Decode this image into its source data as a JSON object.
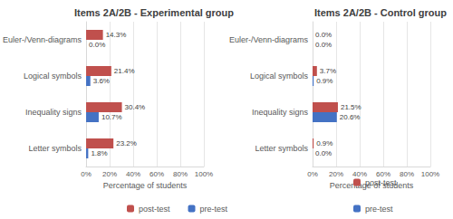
{
  "chart_data": [
    {
      "type": "bar",
      "title": "Items 2A/2B - Experimental group",
      "orientation": "horizontal",
      "categories": [
        "Euler-/Venn-diagrams",
        "Logical symbols",
        "Inequality signs",
        "Letter symbols"
      ],
      "series": [
        {
          "name": "post-test",
          "color": "#c0504d",
          "values": [
            14.3,
            21.4,
            30.4,
            23.2
          ],
          "value_labels": [
            "14.3%",
            "21.4%",
            "30.4%",
            "23.2%"
          ]
        },
        {
          "name": "pre-test",
          "color": "#4472c4",
          "values": [
            0.0,
            3.6,
            10.7,
            1.8
          ],
          "value_labels": [
            "0.0%",
            "3.6%",
            "10.7%",
            "1.8%"
          ]
        }
      ],
      "xlabel": "Percentage of students",
      "xlim": [
        0,
        100
      ],
      "xticks": [
        {
          "value": 0,
          "label": "0%"
        },
        {
          "value": 20,
          "label": "20%"
        },
        {
          "value": 40,
          "label": "40%"
        },
        {
          "value": 60,
          "label": "60%"
        },
        {
          "value": 80,
          "label": "80%"
        },
        {
          "value": 100,
          "label": "100%"
        }
      ],
      "grid": true,
      "legend": "bottom",
      "data_labels": true
    },
    {
      "type": "bar",
      "title": "Items 2A/2B - Control group",
      "orientation": "horizontal",
      "categories": [
        "Euler-/Venn-diagrams",
        "Logical symbols",
        "Inequality signs",
        "Letter symbols"
      ],
      "series": [
        {
          "name": "post-test",
          "color": "#c0504d",
          "values": [
            0.0,
            3.7,
            21.5,
            0.9
          ],
          "value_labels": [
            "0.0%",
            "3.7%",
            "21.5%",
            "0.9%"
          ]
        },
        {
          "name": "pre-test",
          "color": "#4472c4",
          "values": [
            0.0,
            0.9,
            20.6,
            0.0
          ],
          "value_labels": [
            "0.0%",
            "0.9%",
            "20.6%",
            "0.0%"
          ]
        }
      ],
      "xlabel": "Percentage of students",
      "xlim": [
        0,
        100
      ],
      "xticks": [
        {
          "value": 0,
          "label": "0%"
        },
        {
          "value": 20,
          "label": "20%"
        },
        {
          "value": 40,
          "label": "40%"
        },
        {
          "value": 60,
          "label": "60%"
        },
        {
          "value": 80,
          "label": "80%"
        },
        {
          "value": 100,
          "label": "100%"
        }
      ],
      "grid": true,
      "legend": "bottom",
      "data_labels": true
    }
  ]
}
